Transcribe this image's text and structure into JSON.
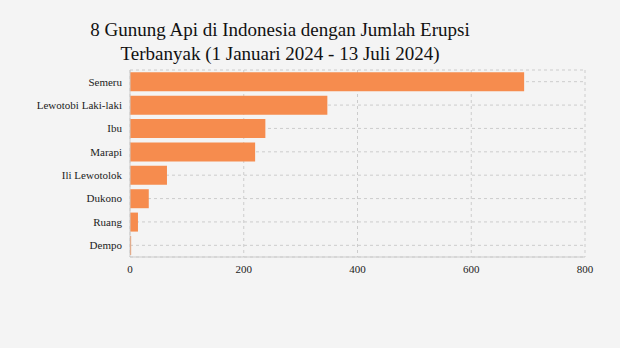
{
  "chart_data": {
    "type": "bar",
    "orientation": "horizontal",
    "title": "8 Gunung Api di Indonesia dengan Jumlah Erupsi\nTerbanyak (1 Januari 2024 - 13 Juli 2024)",
    "categories": [
      "Semeru",
      "Lewotobi Laki-laki",
      "Ibu",
      "Marapi",
      "Ili Lewotolok",
      "Dukono",
      "Ruang",
      "Dempo"
    ],
    "values": [
      693,
      347,
      238,
      220,
      65,
      33,
      14,
      2
    ],
    "color": "#f68c4e",
    "xlim": [
      0,
      800
    ],
    "xticks": [
      0,
      200,
      400,
      600,
      800
    ],
    "grid": true
  }
}
